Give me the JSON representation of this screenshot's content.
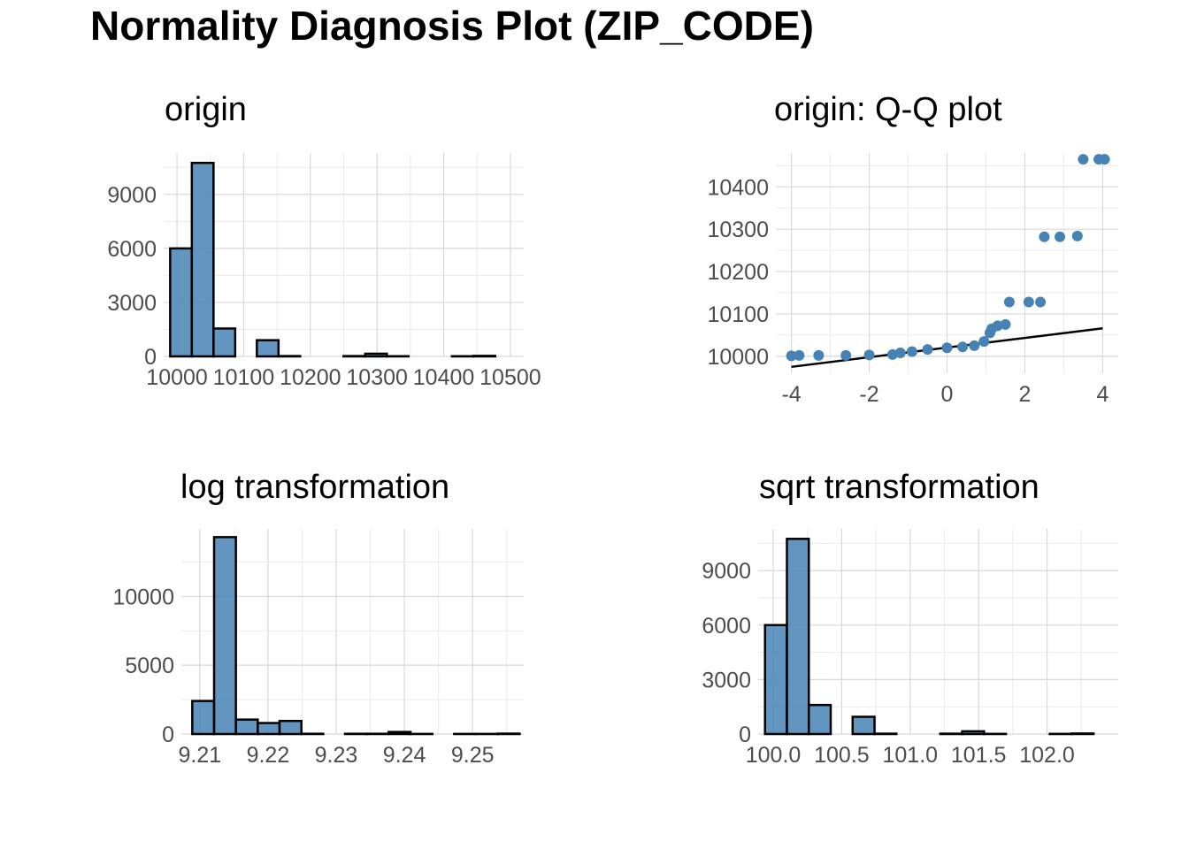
{
  "title": "Normality Diagnosis Plot (ZIP_CODE)",
  "colors": {
    "fill": "#4682b4",
    "outline": "#000000",
    "grid_major": "#d9d9d9",
    "grid_minor": "#ebebeb",
    "text": "#4d4d4d"
  },
  "chart_data": [
    {
      "type": "bar",
      "title": "origin",
      "xlabel": "",
      "ylabel": "",
      "xlim": [
        9980,
        10520
      ],
      "ylim": [
        0,
        11300
      ],
      "x_ticks": [
        10000,
        10100,
        10200,
        10300,
        10400,
        10500
      ],
      "x_tick_labels": [
        "10000",
        "10100",
        "10200",
        "10300",
        "10400",
        "10500"
      ],
      "y_ticks": [
        0,
        3000,
        6000,
        9000
      ],
      "y_tick_labels": [
        "0",
        "3000",
        "6000",
        "9000"
      ],
      "binwidth": 32.5,
      "bins": [
        10006,
        10038.5,
        10071,
        10103.5,
        10136,
        10168.5,
        10201,
        10233.5,
        10266,
        10298.5,
        10331,
        10363.5,
        10396,
        10428.5,
        10461
      ],
      "counts": [
        6000,
        10750,
        1550,
        0,
        900,
        20,
        0,
        0,
        20,
        150,
        10,
        0,
        0,
        10,
        30
      ],
      "grid": true
    },
    {
      "type": "scatter",
      "title": "origin: Q-Q plot",
      "xlabel": "",
      "ylabel": "",
      "xlim": [
        -4.4,
        4.4
      ],
      "ylim": [
        9960,
        10480
      ],
      "x_ticks": [
        -4,
        -2,
        0,
        2,
        4
      ],
      "x_tick_labels": [
        "-4",
        "-2",
        "0",
        "2",
        "4"
      ],
      "y_ticks": [
        10000,
        10100,
        10200,
        10300,
        10400
      ],
      "y_tick_labels": [
        "10000",
        "10100",
        "10200",
        "10300",
        "10400"
      ],
      "points": [
        [
          -4.0,
          10001
        ],
        [
          -3.8,
          10002
        ],
        [
          -3.3,
          10002
        ],
        [
          -2.6,
          10002
        ],
        [
          -2.0,
          10003
        ],
        [
          -1.4,
          10004
        ],
        [
          -1.2,
          10008
        ],
        [
          -0.9,
          10011
        ],
        [
          -0.5,
          10016
        ],
        [
          0.0,
          10020
        ],
        [
          0.4,
          10022
        ],
        [
          0.7,
          10025
        ],
        [
          0.95,
          10035
        ],
        [
          1.1,
          10055
        ],
        [
          1.15,
          10065
        ],
        [
          1.3,
          10072
        ],
        [
          1.5,
          10075
        ],
        [
          1.6,
          10128
        ],
        [
          2.1,
          10128
        ],
        [
          2.4,
          10128
        ],
        [
          2.5,
          10282
        ],
        [
          2.9,
          10282
        ],
        [
          3.35,
          10284
        ],
        [
          3.5,
          10465
        ],
        [
          3.9,
          10465
        ],
        [
          4.05,
          10465
        ]
      ],
      "reference_line": [
        [
          -4.0,
          9975
        ],
        [
          4.0,
          10066
        ]
      ],
      "grid": true
    },
    {
      "type": "bar",
      "title": "log transformation",
      "xlabel": "",
      "ylabel": "",
      "xlim": [
        9.2073,
        9.2575
      ],
      "ylim": [
        0,
        14900
      ],
      "x_ticks": [
        9.21,
        9.22,
        9.23,
        9.24,
        9.25
      ],
      "x_tick_labels": [
        "9.21",
        "9.22",
        "9.23",
        "9.24",
        "9.25"
      ],
      "y_ticks": [
        0,
        5000,
        10000
      ],
      "y_tick_labels": [
        "0",
        "5000",
        "10000"
      ],
      "binwidth": 0.0032,
      "bins": [
        9.2105,
        9.2137,
        9.2169,
        9.2201,
        9.2233,
        9.2265,
        9.2297,
        9.2329,
        9.2361,
        9.2393,
        9.2425,
        9.2457,
        9.2489,
        9.2521,
        9.2553
      ],
      "counts": [
        2400,
        14300,
        1050,
        800,
        950,
        20,
        0,
        20,
        20,
        150,
        10,
        0,
        10,
        10,
        30
      ],
      "grid": true
    },
    {
      "type": "bar",
      "title": "sqrt transformation",
      "xlabel": "",
      "ylabel": "",
      "xlim": [
        99.89,
        102.52
      ],
      "ylim": [
        0,
        11300
      ],
      "x_ticks": [
        100.0,
        100.5,
        101.0,
        101.5,
        102.0
      ],
      "x_tick_labels": [
        "100.0",
        "100.5",
        "101.0",
        "101.5",
        "102.0"
      ],
      "y_ticks": [
        0,
        3000,
        6000,
        9000
      ],
      "y_tick_labels": [
        "0",
        "3000",
        "6000",
        "9000"
      ],
      "binwidth": 0.16,
      "bins": [
        100.02,
        100.18,
        100.34,
        100.5,
        100.66,
        100.82,
        100.98,
        101.14,
        101.3,
        101.46,
        101.62,
        101.78,
        101.94,
        102.1,
        102.26
      ],
      "counts": [
        6000,
        10750,
        1600,
        0,
        950,
        20,
        0,
        0,
        20,
        150,
        10,
        0,
        0,
        10,
        30
      ],
      "grid": true
    }
  ]
}
